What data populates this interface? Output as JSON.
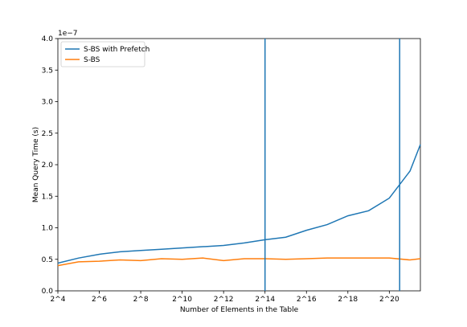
{
  "chart_data": {
    "type": "line",
    "xlabel": "Number of Elements in the Table",
    "ylabel": "Mean Query Time (s)",
    "y_offset_label": "1e−7",
    "x_scale": "log2",
    "xlim_exponent": [
      4,
      21.5
    ],
    "ylim": [
      0.0,
      4.0
    ],
    "y_unit_multiplier": "1e-7",
    "x_ticks": [
      {
        "exp": 4,
        "label": "2^4"
      },
      {
        "exp": 6,
        "label": "2^6"
      },
      {
        "exp": 8,
        "label": "2^8"
      },
      {
        "exp": 10,
        "label": "2^10"
      },
      {
        "exp": 12,
        "label": "2^12"
      },
      {
        "exp": 14,
        "label": "2^14"
      },
      {
        "exp": 16,
        "label": "2^16"
      },
      {
        "exp": 18,
        "label": "2^18"
      },
      {
        "exp": 20,
        "label": "2^20"
      }
    ],
    "y_ticks": [
      "0.0",
      "0.5",
      "1.0",
      "1.5",
      "2.0",
      "2.5",
      "3.0",
      "3.5",
      "4.0"
    ],
    "x_exponents": [
      4,
      5,
      6,
      7,
      8,
      9,
      10,
      11,
      12,
      13,
      14,
      15,
      16,
      17,
      18,
      19,
      20,
      21,
      21.5
    ],
    "series": [
      {
        "name": "S-BS with Prefetch",
        "color": "#1f77b4",
        "values": [
          0.44,
          0.52,
          0.58,
          0.62,
          0.64,
          0.66,
          0.68,
          0.7,
          0.72,
          0.76,
          0.81,
          0.85,
          0.96,
          1.05,
          1.19,
          1.27,
          1.47,
          1.9,
          2.32
        ]
      },
      {
        "name": "S-BS",
        "color": "#ff7f0e",
        "values": [
          0.4,
          0.46,
          0.47,
          0.49,
          0.48,
          0.51,
          0.5,
          0.52,
          0.48,
          0.51,
          0.51,
          0.5,
          0.51,
          0.52,
          0.52,
          0.52,
          0.52,
          0.49,
          0.51
        ]
      }
    ],
    "vertical_lines": [
      {
        "exp": 14.0,
        "color": "#1f77b4"
      },
      {
        "exp": 20.5,
        "color": "#1f77b4"
      }
    ],
    "legend_position": "upper-left",
    "grid": false
  }
}
